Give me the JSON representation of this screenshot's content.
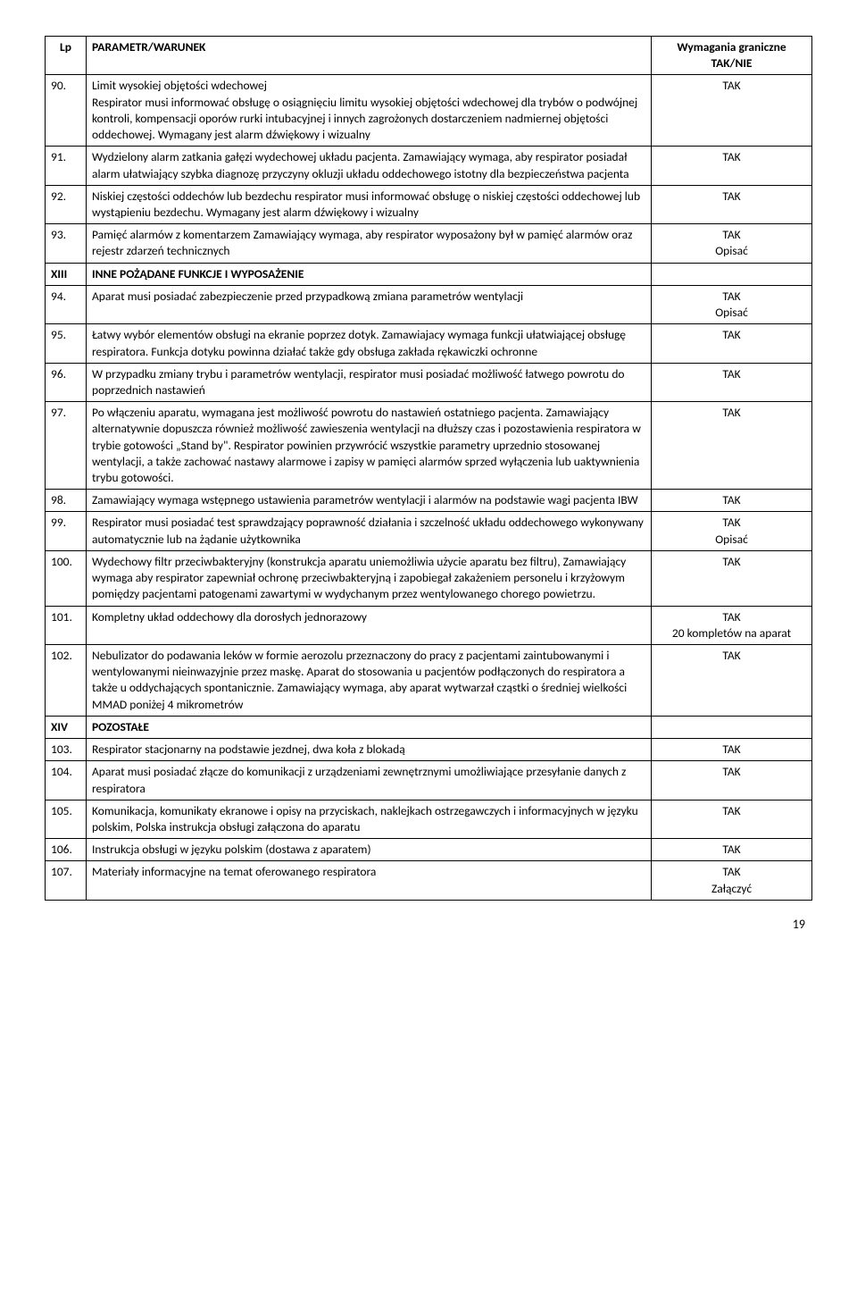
{
  "header": {
    "lp": "Lp",
    "param": "PARAMETR/WARUNEK",
    "requirement": "Wymagania graniczne TAK/NIE"
  },
  "rows": [
    {
      "lp": "90.",
      "text": "Limit wysokiej objętości wdechowej\nRespirator musi informować obsługę o osiągnięciu limitu wysokiej objętości wdechowej dla trybów o podwójnej kontroli, kompensacji oporów rurki intubacyjnej i innych zagrożonych dostarczeniem nadmiernej objętości oddechowej. Wymagany jest alarm dźwiękowy i wizualny",
      "req": "TAK"
    },
    {
      "lp": "91.",
      "text": "Wydzielony alarm zatkania gałęzi wydechowej układu pacjenta. Zamawiający wymaga, aby respirator posiadał alarm ułatwiający szybka diagnozę przyczyny okluzji układu oddechowego istotny dla bezpieczeństwa pacjenta",
      "req": "TAK"
    },
    {
      "lp": "92.",
      "text": "Niskiej częstości oddechów lub bezdechu respirator musi informować obsługę o niskiej częstości oddechowej lub wystąpieniu bezdechu. Wymagany jest alarm dźwiękowy i wizualny",
      "req": "TAK"
    },
    {
      "lp": "93.",
      "text": "Pamięć alarmów z komentarzem Zamawiający wymaga, aby respirator wyposażony był w pamięć alarmów oraz rejestr zdarzeń technicznych",
      "req": "TAK\nOpisać"
    },
    {
      "lp": "XIII",
      "text": "INNE POŻĄDANE FUNKCJE I WYPOSAŻENIE",
      "req": "",
      "section": true
    },
    {
      "lp": "94.",
      "text": "Aparat musi posiadać zabezpieczenie przed przypadkową zmiana parametrów wentylacji",
      "req": "TAK\nOpisać"
    },
    {
      "lp": "95.",
      "text": "Łatwy wybór elementów obsługi na ekranie poprzez dotyk. Zamawiajacy wymaga funkcji ułatwiającej obsługę respiratora. Funkcja dotyku  powinna działać także gdy obsługa zakłada rękawiczki ochronne",
      "req": "TAK"
    },
    {
      "lp": "96.",
      "text": "W przypadku zmiany trybu i parametrów wentylacji, respirator musi posiadać możliwość łatwego powrotu do poprzednich nastawień",
      "req": "TAK"
    },
    {
      "lp": "97.",
      "text": "Po włączeniu aparatu, wymagana jest możliwość powrotu do nastawień ostatniego pacjenta. Zamawiający alternatywnie dopuszcza również możliwość zawieszenia wentylacji na dłuższy czas i pozostawienia respiratora w trybie gotowości „Stand by\". Respirator powinien przywrócić wszystkie parametry uprzednio stosowanej wentylacji, a także zachować nastawy alarmowe i zapisy w pamięci alarmów sprzed wyłączenia lub uaktywnienia trybu gotowości.",
      "req": "TAK"
    },
    {
      "lp": "98.",
      "text": "Zamawiający wymaga wstępnego ustawienia parametrów wentylacji i alarmów na podstawie wagi pacjenta IBW",
      "req": "TAK"
    },
    {
      "lp": "99.",
      "text": "Respirator musi posiadać test sprawdzający poprawność działania i szczelność układu oddechowego wykonywany automatycznie lub na żądanie użytkownika",
      "req": "TAK\nOpisać"
    },
    {
      "lp": "100.",
      "text": "Wydechowy filtr przeciwbakteryjny (konstrukcja aparatu uniemożliwia użycie aparatu bez filtru), Zamawiający wymaga aby respirator zapewniał ochronę przeciwbakteryjną i zapobiegał zakażeniem personelu i krzyżowym pomiędzy pacjentami patogenami zawartymi w wydychanym przez wentylowanego chorego powietrzu.",
      "req": "TAK"
    },
    {
      "lp": "101.",
      "text": "Kompletny układ oddechowy dla dorosłych jednorazowy",
      "req": "TAK\n20 kompletów na aparat"
    },
    {
      "lp": "102.",
      "text": "Nebulizator do podawania leków w formie aerozolu przeznaczony do pracy z pacjentami zaintubowanymi i wentylowanymi nieinwazyjnie przez maskę. Aparat do stosowania u pacjentów podłączonych do respiratora a także u oddychających spontanicznie. Zamawiający wymaga, aby aparat wytwarzał cząstki o średniej wielkości MMAD poniżej 4 mikrometrów",
      "req": "TAK"
    },
    {
      "lp": "XIV",
      "text": "POZOSTAŁE",
      "req": "",
      "section": true
    },
    {
      "lp": "103.",
      "text": "Respirator stacjonarny na podstawie jezdnej, dwa koła z blokadą",
      "req": "TAK"
    },
    {
      "lp": "104.",
      "text": "Aparat musi posiadać złącze do komunikacji z urządzeniami zewnętrznymi umożliwiające przesyłanie danych z respiratora",
      "req": "TAK"
    },
    {
      "lp": "105.",
      "text": "Komunikacja, komunikaty ekranowe i opisy na przyciskach, naklejkach ostrzegawczych i informacyjnych w języku polskim, Polska instrukcja obsługi załączona do aparatu",
      "req": "TAK"
    },
    {
      "lp": "106.",
      "text": "Instrukcja obsługi w języku polskim (dostawa z aparatem)",
      "req": "TAK"
    },
    {
      "lp": "107.",
      "text": "Materiały informacyjne na temat oferowanego respiratora",
      "req": "TAK\nZałączyć"
    }
  ],
  "pageNumber": "19"
}
